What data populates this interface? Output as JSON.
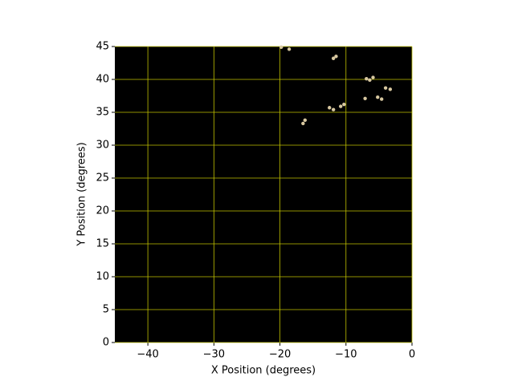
{
  "chart_data": {
    "type": "scatter",
    "x_label": "X Position (degrees)",
    "y_label": "Y Position (degrees)",
    "x": [
      -19.8,
      -18.6,
      -11.9,
      -11.5,
      -6.4,
      -6.9,
      -5.9,
      -4.0,
      -3.3,
      -5.2,
      -4.6,
      -7.1,
      -10.3,
      -10.8,
      -12.5,
      -11.9,
      -16.2,
      -16.5
    ],
    "values": [
      44.9,
      44.6,
      43.2,
      43.5,
      39.9,
      40.1,
      40.3,
      38.7,
      38.5,
      37.3,
      37.0,
      37.1,
      36.2,
      35.9,
      35.7,
      35.4,
      33.8,
      33.3
    ],
    "color": "#d8c8a0",
    "facecolor": "#000000",
    "grid": true,
    "grid_color": "#c0c000",
    "xlim": [
      -45,
      0
    ],
    "ylim": [
      0,
      45
    ],
    "xticks": [
      {
        "value": -40,
        "label": "−40"
      },
      {
        "value": -30,
        "label": "−30"
      },
      {
        "value": -20,
        "label": "−20"
      },
      {
        "value": -10,
        "label": "−10"
      },
      0
    ],
    "yticks": [
      0,
      5,
      10,
      15,
      20,
      25,
      30,
      35,
      40,
      45
    ]
  }
}
